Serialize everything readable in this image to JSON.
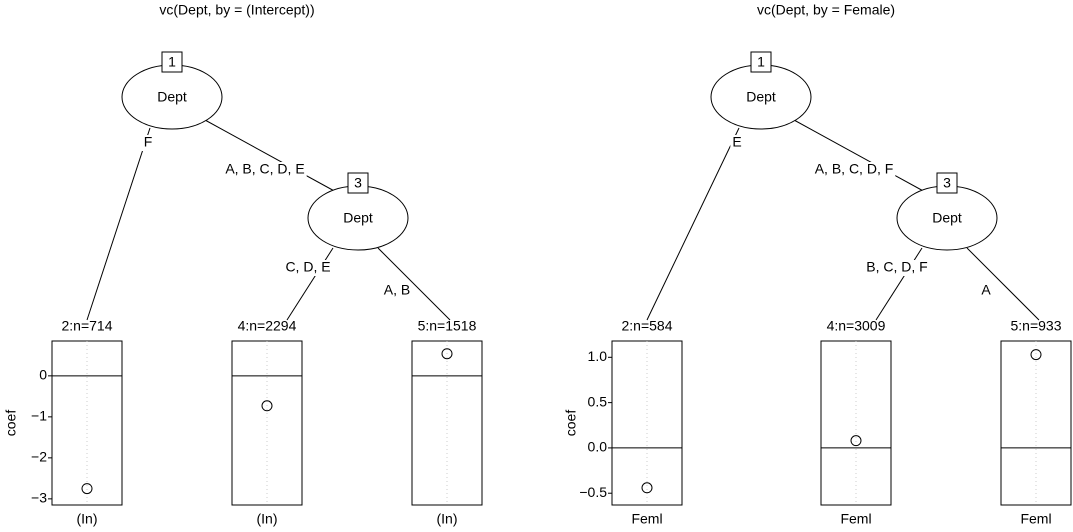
{
  "chart_data": [
    {
      "type": "tree",
      "title": "vc(Dept, by = (Intercept))",
      "ylabel": "coef",
      "ylim": [
        -3.15,
        0.85
      ],
      "yticks": [
        {
          "value": -3,
          "label": "−3"
        },
        {
          "value": -2,
          "label": "−2"
        },
        {
          "value": -1,
          "label": "−1"
        },
        0
      ],
      "nodes": [
        {
          "id": "1",
          "label": "Dept"
        },
        {
          "id": "3",
          "label": "Dept"
        }
      ],
      "edges": [
        "F",
        "A, B, C, D, E",
        "C, D, E",
        "A, B"
      ],
      "terminals": [
        {
          "label": "2:n=714",
          "category": "(In)",
          "value": -2.75
        },
        {
          "label": "4:n=2294",
          "category": "(In)",
          "value": -0.73
        },
        {
          "label": "5:n=1518",
          "category": "(In)",
          "value": 0.54
        }
      ]
    },
    {
      "type": "tree",
      "title": "vc(Dept, by = Female)",
      "ylabel": "coef",
      "ylim": [
        -0.63,
        1.18
      ],
      "yticks": [
        {
          "value": -0.5,
          "label": "−0.5"
        },
        {
          "value": 0,
          "label": "0.0"
        },
        0.5,
        {
          "value": 1,
          "label": "1.0"
        }
      ],
      "nodes": [
        {
          "id": "1",
          "label": "Dept"
        },
        {
          "id": "3",
          "label": "Dept"
        }
      ],
      "edges": [
        "E",
        "A, B, C, D, F",
        "B, C, D, F",
        "A"
      ],
      "terminals": [
        {
          "label": "2:n=584",
          "category": "Feml",
          "value": -0.44
        },
        {
          "label": "4:n=3009",
          "category": "Feml",
          "value": 0.08
        },
        {
          "label": "5:n=933",
          "category": "Feml",
          "value": 1.03
        }
      ]
    }
  ]
}
